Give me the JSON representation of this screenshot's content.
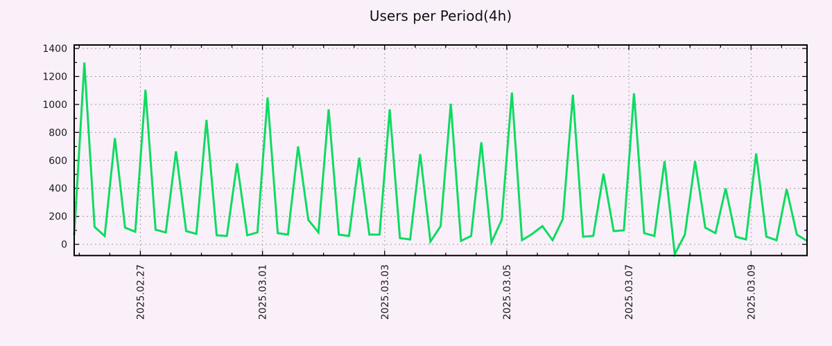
{
  "chart": {
    "title": "Users per Period(4h)"
  },
  "chart_data": {
    "type": "line",
    "title": "Users per Period(4h)",
    "series_name": "users",
    "x_start": "2025-02-25 22:00",
    "x_step_hours": 4,
    "x_total_hours": 288,
    "values": [
      65,
      1300,
      125,
      60,
      760,
      120,
      90,
      1105,
      105,
      85,
      665,
      95,
      75,
      890,
      65,
      60,
      580,
      65,
      85,
      1050,
      80,
      70,
      700,
      175,
      85,
      965,
      70,
      60,
      620,
      70,
      70,
      965,
      45,
      35,
      645,
      20,
      130,
      1005,
      25,
      60,
      730,
      15,
      175,
      1085,
      30,
      75,
      130,
      30,
      180,
      1070,
      55,
      60,
      505,
      95,
      100,
      1080,
      80,
      60,
      595,
      -70,
      70,
      595,
      120,
      80,
      400,
      55,
      35,
      650,
      55,
      30,
      395,
      70,
      25
    ],
    "x_major_ticks": [
      {
        "label": "2025.02.27",
        "hour": 26
      },
      {
        "label": "2025.03.01",
        "hour": 74
      },
      {
        "label": "2025.03.03",
        "hour": 122
      },
      {
        "label": "2025.03.05",
        "hour": 170
      },
      {
        "label": "2025.03.07",
        "hour": 218
      },
      {
        "label": "2025.03.09",
        "hour": 266
      }
    ],
    "x_minor_tick_first_hour": 2,
    "x_minor_tick_every_hours": 12,
    "y_ticks": [
      0,
      200,
      400,
      600,
      800,
      1000,
      1200,
      1400
    ],
    "y_minor_ticks": [
      100,
      300,
      500,
      700,
      900,
      1100,
      1300
    ],
    "ylim": [
      -80,
      1425
    ],
    "xlabel": "",
    "ylabel": "",
    "grid": true,
    "legend": "none",
    "colors": {
      "line": "#0cdc5f",
      "background": "#faf0fa",
      "grid": "#9a9a9a",
      "axis": "#000000",
      "text": "#1a1a1a"
    }
  }
}
